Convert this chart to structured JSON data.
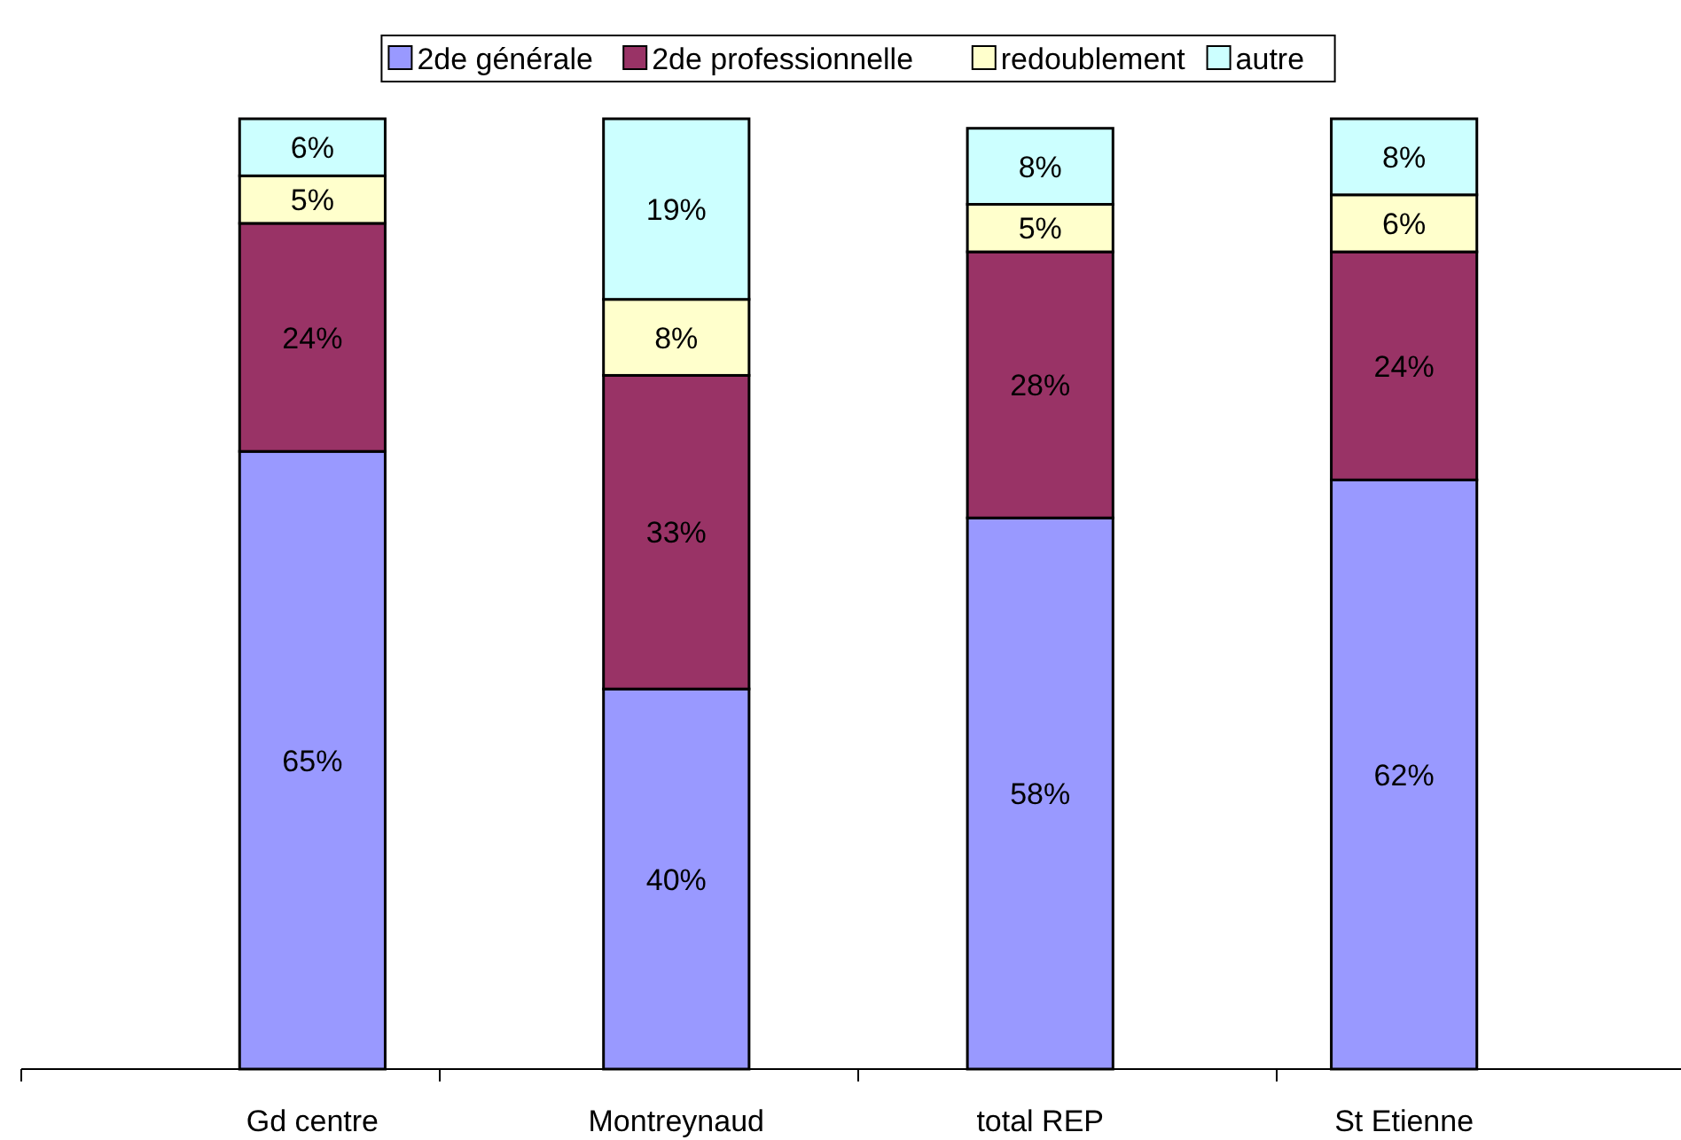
{
  "chart_data": {
    "type": "bar",
    "stacked": true,
    "categories": [
      "Gd centre",
      "Montreynaud",
      "total REP",
      "St Etienne"
    ],
    "series": [
      {
        "name": "2de générale",
        "color": "#9999ff",
        "values": [
          65,
          40,
          58,
          62
        ],
        "value_labels": [
          "65%",
          "40%",
          "58%",
          "62%"
        ]
      },
      {
        "name": "2de professionnelle",
        "color": "#993366",
        "values": [
          24,
          33,
          28,
          24
        ],
        "value_labels": [
          "24%",
          "33%",
          "28%",
          "24%"
        ]
      },
      {
        "name": "redoublement",
        "color": "#ffffcc",
        "values": [
          5,
          8,
          5,
          6
        ],
        "value_labels": [
          "5%",
          "8%",
          "5%",
          "6%"
        ]
      },
      {
        "name": "autre",
        "color": "#ccffff",
        "values": [
          6,
          19,
          8,
          8
        ],
        "value_labels": [
          "6%",
          "19%",
          "8%",
          "8%"
        ]
      }
    ],
    "ylim": [
      0,
      100
    ],
    "legend": "top"
  }
}
